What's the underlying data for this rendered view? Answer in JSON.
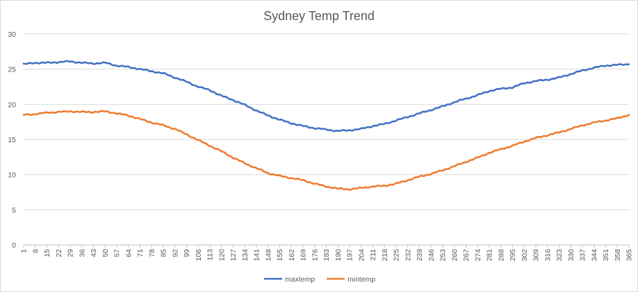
{
  "chart_data": {
    "type": "line",
    "title": "Sydney Temp Trend",
    "xlabel": "",
    "ylabel": "",
    "x_range": [
      1,
      365
    ],
    "ylim": [
      0,
      30
    ],
    "y_ticks": [
      0,
      5,
      10,
      15,
      20,
      25,
      30
    ],
    "x_ticks": [
      1,
      8,
      15,
      22,
      29,
      36,
      43,
      50,
      57,
      64,
      71,
      78,
      85,
      92,
      99,
      106,
      113,
      120,
      127,
      134,
      141,
      148,
      155,
      162,
      169,
      176,
      183,
      190,
      197,
      204,
      211,
      218,
      225,
      232,
      239,
      246,
      253,
      260,
      267,
      274,
      281,
      288,
      295,
      302,
      309,
      316,
      323,
      330,
      337,
      344,
      351,
      358,
      365
    ],
    "grid": "horizontal",
    "legend_position": "bottom",
    "series": [
      {
        "name": "maxtemp",
        "color": "#4472c4",
        "points": [
          [
            1,
            25.7
          ],
          [
            8,
            25.9
          ],
          [
            15,
            25.9
          ],
          [
            22,
            26.0
          ],
          [
            29,
            26.1
          ],
          [
            36,
            25.9
          ],
          [
            43,
            25.8
          ],
          [
            50,
            25.9
          ],
          [
            57,
            25.5
          ],
          [
            64,
            25.3
          ],
          [
            71,
            25.0
          ],
          [
            78,
            24.7
          ],
          [
            85,
            24.4
          ],
          [
            92,
            23.8
          ],
          [
            99,
            23.2
          ],
          [
            106,
            22.5
          ],
          [
            113,
            22.0
          ],
          [
            120,
            21.2
          ],
          [
            127,
            20.6
          ],
          [
            134,
            19.9
          ],
          [
            141,
            19.1
          ],
          [
            148,
            18.4
          ],
          [
            155,
            17.8
          ],
          [
            162,
            17.3
          ],
          [
            169,
            16.9
          ],
          [
            176,
            16.6
          ],
          [
            183,
            16.4
          ],
          [
            190,
            16.2
          ],
          [
            197,
            16.3
          ],
          [
            204,
            16.5
          ],
          [
            211,
            16.9
          ],
          [
            218,
            17.2
          ],
          [
            225,
            17.7
          ],
          [
            232,
            18.2
          ],
          [
            239,
            18.7
          ],
          [
            246,
            19.2
          ],
          [
            253,
            19.7
          ],
          [
            260,
            20.3
          ],
          [
            267,
            20.8
          ],
          [
            274,
            21.3
          ],
          [
            281,
            21.9
          ],
          [
            288,
            22.2
          ],
          [
            295,
            22.4
          ],
          [
            302,
            23.0
          ],
          [
            309,
            23.3
          ],
          [
            316,
            23.5
          ],
          [
            323,
            23.8
          ],
          [
            330,
            24.3
          ],
          [
            337,
            24.8
          ],
          [
            344,
            25.2
          ],
          [
            351,
            25.5
          ],
          [
            358,
            25.6
          ],
          [
            365,
            25.7
          ]
        ]
      },
      {
        "name": "mintemp",
        "color": "#ed7d31",
        "points": [
          [
            1,
            18.5
          ],
          [
            8,
            18.6
          ],
          [
            15,
            18.8
          ],
          [
            22,
            18.9
          ],
          [
            29,
            19.0
          ],
          [
            36,
            18.9
          ],
          [
            43,
            18.9
          ],
          [
            50,
            19.0
          ],
          [
            57,
            18.7
          ],
          [
            64,
            18.4
          ],
          [
            71,
            17.9
          ],
          [
            78,
            17.4
          ],
          [
            85,
            17.0
          ],
          [
            92,
            16.5
          ],
          [
            99,
            15.7
          ],
          [
            106,
            14.9
          ],
          [
            113,
            14.1
          ],
          [
            120,
            13.3
          ],
          [
            127,
            12.4
          ],
          [
            134,
            11.6
          ],
          [
            141,
            10.9
          ],
          [
            148,
            10.2
          ],
          [
            155,
            9.8
          ],
          [
            162,
            9.5
          ],
          [
            169,
            9.2
          ],
          [
            176,
            8.7
          ],
          [
            183,
            8.3
          ],
          [
            190,
            8.0
          ],
          [
            197,
            7.9
          ],
          [
            204,
            8.1
          ],
          [
            211,
            8.3
          ],
          [
            218,
            8.4
          ],
          [
            225,
            8.7
          ],
          [
            232,
            9.2
          ],
          [
            239,
            9.7
          ],
          [
            246,
            10.1
          ],
          [
            253,
            10.6
          ],
          [
            260,
            11.2
          ],
          [
            267,
            11.8
          ],
          [
            274,
            12.4
          ],
          [
            281,
            13.1
          ],
          [
            288,
            13.6
          ],
          [
            295,
            14.1
          ],
          [
            302,
            14.7
          ],
          [
            309,
            15.2
          ],
          [
            316,
            15.6
          ],
          [
            323,
            16.0
          ],
          [
            330,
            16.5
          ],
          [
            337,
            17.0
          ],
          [
            344,
            17.4
          ],
          [
            351,
            17.7
          ],
          [
            358,
            18.0
          ],
          [
            365,
            18.5
          ]
        ]
      }
    ]
  }
}
